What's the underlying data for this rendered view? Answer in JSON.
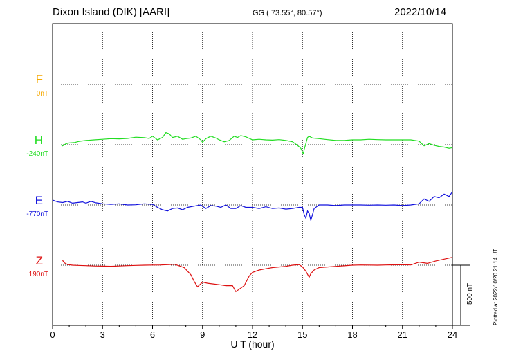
{
  "header": {
    "station": "Dixon Island (DIK)  [AARI]",
    "coords": "GG ( 73.55°,  80.57°)",
    "date": "2022/10/14"
  },
  "plotted_note": "Plotted at 2022/10/20 21:14 UT",
  "scale_label": "500 nT",
  "chart_data": {
    "type": "line",
    "xlabel": "U T (hour)",
    "xlim": [
      0,
      24
    ],
    "xticks": [
      "0",
      "3",
      "6",
      "9",
      "12",
      "15",
      "18",
      "21",
      "24"
    ],
    "scale_bar_nT": 500,
    "series": [
      {
        "name": "F",
        "baseline": "0nT",
        "color": "#f5a800",
        "values": []
      },
      {
        "name": "H",
        "baseline": "-240nT",
        "color": "#22dd22",
        "x": [
          0.5,
          0.6,
          0.8,
          1.0,
          1.3,
          1.6,
          2.0,
          2.5,
          3.0,
          3.5,
          4.0,
          4.5,
          5.0,
          5.5,
          5.8,
          6.0,
          6.3,
          6.6,
          6.8,
          7.0,
          7.2,
          7.5,
          7.8,
          8.0,
          8.3,
          8.6,
          8.9,
          9.0,
          9.2,
          9.5,
          9.8,
          10.0,
          10.3,
          10.6,
          10.9,
          11.1,
          11.3,
          11.6,
          12.0,
          12.4,
          12.8,
          13.2,
          13.6,
          14.0,
          14.4,
          14.7,
          14.9,
          15.0,
          15.05,
          15.1,
          15.2,
          15.3,
          15.4,
          15.6,
          16.0,
          16.5,
          17.0,
          17.5,
          18.0,
          18.5,
          19.0,
          19.5,
          20.0,
          20.5,
          21.0,
          21.5,
          22.0,
          22.3,
          22.6,
          22.9,
          23.2,
          23.5,
          23.8,
          24.0
        ],
        "values": [
          -240,
          -250,
          -232,
          -225,
          -222,
          -212,
          -205,
          -200,
          -195,
          -190,
          -192,
          -188,
          -178,
          -182,
          -188,
          -170,
          -200,
          -180,
          -140,
          -150,
          -180,
          -170,
          -195,
          -190,
          -185,
          -170,
          -200,
          -220,
          -190,
          -170,
          -185,
          -200,
          -215,
          -205,
          -170,
          -180,
          -165,
          -175,
          -200,
          -195,
          -200,
          -202,
          -198,
          -205,
          -215,
          -245,
          -270,
          -300,
          -320,
          -280,
          -230,
          -180,
          -170,
          -185,
          -190,
          -198,
          -205,
          -205,
          -200,
          -200,
          -195,
          -198,
          -200,
          -200,
          -200,
          -200,
          -210,
          -250,
          -230,
          -245,
          -255,
          -260,
          -270,
          -265
        ]
      },
      {
        "name": "E",
        "baseline": "-770nT",
        "color": "#1111dd",
        "x": [
          0.0,
          0.3,
          0.6,
          0.9,
          1.2,
          1.5,
          1.8,
          2.0,
          2.3,
          2.6,
          3.0,
          3.5,
          4.0,
          4.5,
          5.0,
          5.5,
          6.0,
          6.3,
          6.6,
          6.9,
          7.2,
          7.5,
          7.8,
          8.1,
          8.5,
          8.9,
          9.2,
          9.5,
          9.8,
          10.1,
          10.4,
          10.7,
          11.0,
          11.3,
          11.6,
          12.0,
          12.4,
          12.8,
          13.2,
          13.6,
          14.0,
          14.4,
          14.8,
          15.0,
          15.1,
          15.2,
          15.3,
          15.4,
          15.5,
          15.7,
          16.0,
          16.5,
          17.0,
          17.5,
          18.0,
          18.5,
          19.0,
          19.5,
          20.0,
          20.5,
          21.0,
          21.5,
          22.0,
          22.3,
          22.6,
          22.9,
          23.2,
          23.5,
          23.8,
          24.0
        ],
        "values": [
          -730,
          -745,
          -750,
          -740,
          -755,
          -750,
          -745,
          -755,
          -740,
          -752,
          -760,
          -765,
          -760,
          -770,
          -768,
          -760,
          -765,
          -790,
          -810,
          -820,
          -800,
          -795,
          -810,
          -790,
          -780,
          -770,
          -800,
          -775,
          -780,
          -790,
          -770,
          -800,
          -800,
          -775,
          -790,
          -790,
          -800,
          -785,
          -800,
          -795,
          -805,
          -800,
          -790,
          -790,
          -850,
          -880,
          -820,
          -840,
          -900,
          -800,
          -770,
          -770,
          -775,
          -770,
          -770,
          -770,
          -772,
          -770,
          -772,
          -770,
          -775,
          -770,
          -760,
          -720,
          -740,
          -700,
          -710,
          -680,
          -700,
          -660
        ]
      },
      {
        "name": "Z",
        "baseline": "190nT",
        "color": "#dd1111",
        "x": [
          0.6,
          0.7,
          0.9,
          1.2,
          1.5,
          2.0,
          2.5,
          3.0,
          3.5,
          4.0,
          4.5,
          5.0,
          5.5,
          6.0,
          6.5,
          7.0,
          7.3,
          7.6,
          7.9,
          8.1,
          8.3,
          8.5,
          8.7,
          9.0,
          9.3,
          9.6,
          10.0,
          10.4,
          10.8,
          11.0,
          11.2,
          11.5,
          11.8,
          12.0,
          12.4,
          12.8,
          13.2,
          13.6,
          14.0,
          14.4,
          14.8,
          15.0,
          15.2,
          15.4,
          15.5,
          15.7,
          16.0,
          16.5,
          17.0,
          17.5,
          18.0,
          18.5,
          19.0,
          19.5,
          20.0,
          20.5,
          21.0,
          21.5,
          22.0,
          22.5,
          23.0,
          23.5,
          24.0
        ],
        "values": [
          230,
          210,
          195,
          190,
          188,
          186,
          183,
          182,
          181,
          183,
          186,
          188,
          190,
          191,
          192,
          195,
          198,
          185,
          170,
          140,
          110,
          55,
          10,
          50,
          40,
          35,
          28,
          20,
          20,
          -30,
          -10,
          20,
          100,
          130,
          150,
          160,
          170,
          175,
          180,
          190,
          195,
          175,
          140,
          90,
          120,
          150,
          170,
          175,
          180,
          185,
          190,
          192,
          191,
          190,
          192,
          193,
          194,
          192,
          215,
          205,
          225,
          240,
          255
        ]
      }
    ]
  }
}
